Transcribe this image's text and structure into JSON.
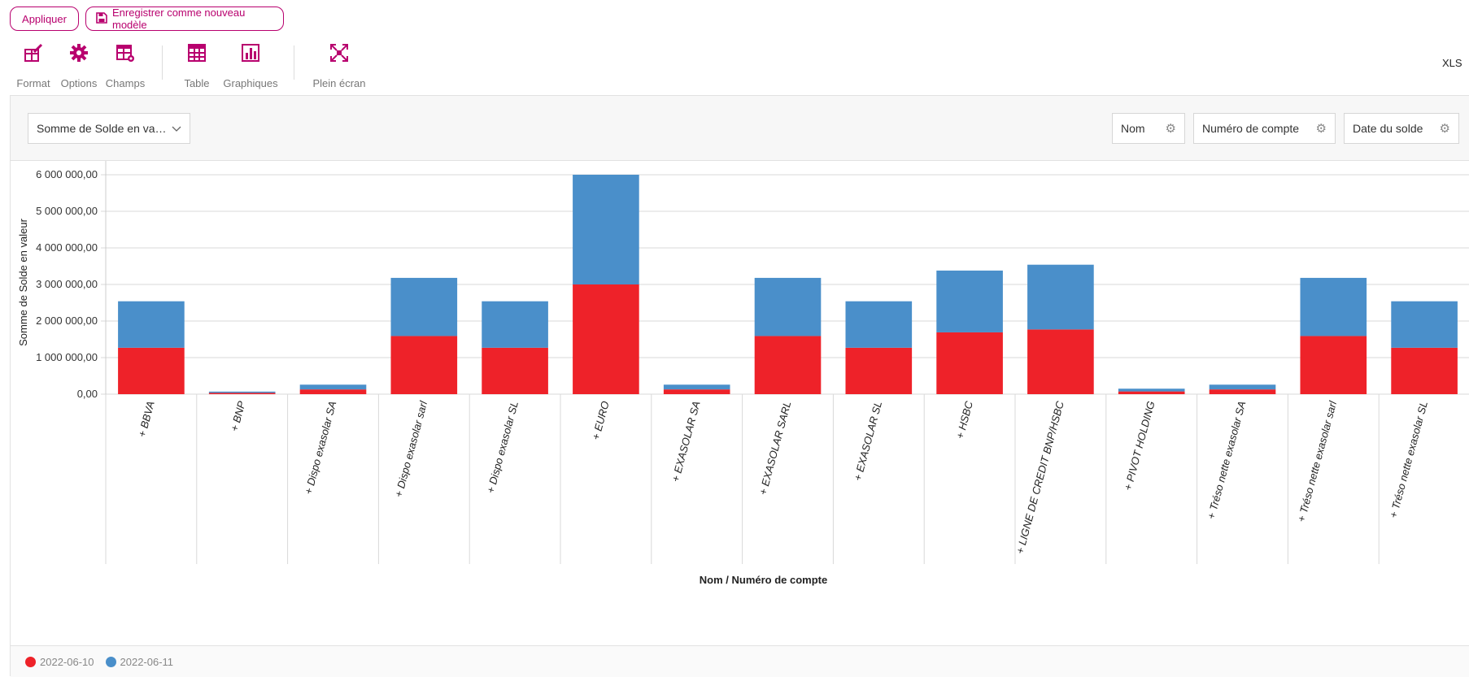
{
  "toolbar": {
    "apply_label": "Appliquer",
    "save_label": "Enregistrer comme nouveau modèle",
    "tools": [
      {
        "label": "Format",
        "icon": "format-icon"
      },
      {
        "label": "Options",
        "icon": "gear-icon"
      },
      {
        "label": "Champs",
        "icon": "fields-icon"
      },
      {
        "label": "Table",
        "icon": "table-icon"
      },
      {
        "label": "Graphiques",
        "icon": "bar-chart-icon"
      },
      {
        "label": "Plein écran",
        "icon": "fullscreen-icon"
      }
    ],
    "xls_label": "XLS"
  },
  "filters": {
    "measure": "Somme de Solde en valeur",
    "fields": [
      "Nom",
      "Numéro de compte",
      "Date du solde"
    ]
  },
  "colors": {
    "accent": "#b8006e",
    "series_red": "#ee2229",
    "series_blue": "#4a8fca"
  },
  "chart_data": {
    "type": "bar",
    "stacked": true,
    "xlabel": "Nom / Numéro de compte",
    "ylabel": "Somme de Solde en valeur",
    "ylim": [
      0,
      6000000
    ],
    "yticks": [
      "0,00",
      "1 000 000,00",
      "2 000 000,00",
      "3 000 000,00",
      "4 000 000,00",
      "5 000 000,00",
      "6 000 000,00"
    ],
    "categories": [
      "+ BBVA",
      "+ BNP",
      "+ Dispo exasolar SA",
      "+ Dispo exasolar sarl",
      "+ Dispo exasolar SL",
      "+ EURO",
      "+ EXASOLAR SA",
      "+ EXASOLAR SARL",
      "+ EXASOLAR SL",
      "+ HSBC",
      "+ LIGNE DE CREDIT BNP/HSBC",
      "+ PIVOT HOLDING",
      "+ Tréso nette exasolar SA",
      "+ Tréso nette exasolar sarl",
      "+ Tréso nette exasolar SL"
    ],
    "series": [
      {
        "name": "2022-06-10",
        "color": "#ee2229",
        "values": [
          1270000,
          35000,
          130000,
          1590000,
          1270000,
          3000000,
          130000,
          1590000,
          1270000,
          1690000,
          1770000,
          75000,
          130000,
          1590000,
          1270000
        ]
      },
      {
        "name": "2022-06-11",
        "color": "#4a8fca",
        "values": [
          1270000,
          35000,
          130000,
          1590000,
          1270000,
          3000000,
          130000,
          1590000,
          1270000,
          1690000,
          1770000,
          75000,
          130000,
          1590000,
          1270000
        ]
      }
    ],
    "grid": true,
    "legend_position": "bottom-left"
  }
}
